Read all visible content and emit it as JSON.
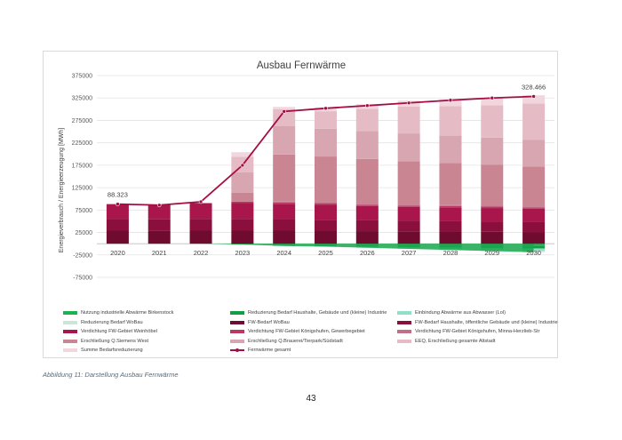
{
  "colors": {
    "fernwaerme_line": "#a50d45",
    "reduction_green": "#18a84d",
    "reduction_teal": "#8fe0c8"
  },
  "chart_data": {
    "type": "bar",
    "subtype": "stacked-bar-with-line",
    "title": "Ausbau Fernwärme",
    "xlabel": "",
    "ylabel": "Energieverbrauch / Energieerzeugung [MWh]",
    "ylim": [
      -75000,
      375000
    ],
    "yticks": [
      -75000,
      -25000,
      25000,
      75000,
      125000,
      175000,
      225000,
      275000,
      325000,
      375000
    ],
    "ytick_labels": [
      "-75000",
      "-25000",
      "25000",
      "75000",
      "125000",
      "175000",
      "225000",
      "275000",
      "325000",
      "375000"
    ],
    "grid": true,
    "legend_position": "bottom",
    "categories": [
      "2020",
      "2021",
      "2022",
      "2023",
      "2024",
      "2025",
      "2026",
      "2027",
      "2028",
      "2029",
      "2030"
    ],
    "series": [
      {
        "name": "Nutzung industrielle Abwärme Birkenstock",
        "color": "#1fb14f",
        "stack": "negative",
        "values": [
          0,
          0,
          0,
          0,
          -2000,
          -2500,
          -3000,
          -3500,
          -4000,
          -4500,
          -5000
        ]
      },
      {
        "name": "Reduzierung Bedarf Haushalte, Gebäude und (kleine) Industrie",
        "color": "#129e43",
        "stack": "negative",
        "values": [
          0,
          0,
          0,
          -2000,
          -2500,
          -3000,
          -3500,
          -4000,
          -4500,
          -5000,
          -5500
        ]
      },
      {
        "name": "Einbindung Abwärme aus Abwasser (Lol)",
        "color": "#8fe0c8",
        "stack": "negative",
        "values": [
          0,
          0,
          0,
          0,
          0,
          0,
          -1000,
          -2000,
          -3000,
          -4000,
          -5000
        ]
      },
      {
        "name": "Reduzierung Bedarf WoBau",
        "color": "#c9e6dc",
        "stack": "negative",
        "values": [
          0,
          0,
          0,
          0,
          -500,
          -1000,
          -1500,
          -2000,
          -2500,
          -3000,
          -3500
        ]
      },
      {
        "name": "FW-Bedarf WoBau",
        "color": "#6e0b2e",
        "stack": "positive",
        "values": [
          30000,
          29500,
          30000,
          30000,
          30000,
          29000,
          28000,
          27500,
          27000,
          26500,
          26000
        ]
      },
      {
        "name": "FW-Bedarf Haushalte, öffentliche Gebäude und (kleine) Industrie",
        "color": "#8a0f3c",
        "stack": "positive",
        "values": [
          25000,
          25000,
          25500,
          25500,
          25000,
          24500,
          24000,
          23500,
          23000,
          22500,
          22000
        ]
      },
      {
        "name": "Verdichtung FW-Gebiet Weinhöbel",
        "color": "#a8164b",
        "stack": "positive",
        "values": [
          33323,
          32500,
          35000,
          35000,
          34000,
          33000,
          32000,
          31000,
          31000,
          30500,
          30000
        ]
      },
      {
        "name": "Verdichtung FW-Gebiet Königshufen, Gewerbegebiet",
        "color": "#b83a62",
        "stack": "positive",
        "values": [
          0,
          0,
          0,
          3500,
          3000,
          3000,
          3000,
          3000,
          3000,
          3000,
          3000
        ]
      },
      {
        "name": "Verdichtung FW-Gebiet Königshufen, Minna-Herzlieb-Str",
        "color": "#c06f86",
        "stack": "positive",
        "values": [
          0,
          0,
          0,
          0,
          2000,
          2000,
          2000,
          2000,
          2000,
          2000,
          2000
        ]
      },
      {
        "name": "Erschließung Q.Siemens West",
        "color": "#c98592",
        "stack": "positive",
        "values": [
          0,
          0,
          0,
          20000,
          105000,
          103000,
          100000,
          97000,
          94000,
          92000,
          89000
        ]
      },
      {
        "name": "Erschließung Q.Brauerei/Tierpark/Südstadt",
        "color": "#d8a6b1",
        "stack": "positive",
        "values": [
          0,
          0,
          0,
          45000,
          63000,
          62000,
          62000,
          62000,
          61000,
          60000,
          60000
        ]
      },
      {
        "name": "EEQ, Erschließung gesamte Altstadt",
        "color": "#e5bcc6",
        "stack": "positive",
        "values": [
          0,
          0,
          0,
          35000,
          38000,
          39000,
          50000,
          60000,
          66000,
          72000,
          81000
        ]
      },
      {
        "name": "Summe Bedarfsreduzierung",
        "color": "#f2d6de",
        "stack": "positive",
        "values": [
          0,
          0,
          0,
          10000,
          5000,
          8000,
          10000,
          13000,
          15000,
          17000,
          18000
        ]
      }
    ],
    "line_series": {
      "name": "Fernwärme gesamt",
      "color": "#a50d45",
      "values": [
        88323,
        86000,
        93500,
        175000,
        295000,
        302000,
        308000,
        314000,
        320000,
        325000,
        328466
      ]
    },
    "data_labels": [
      {
        "category": "2020",
        "text": "88.323"
      },
      {
        "category": "2030",
        "text": "328.466"
      }
    ]
  },
  "caption": "Abbildung 11: Darstellung Ausbau Fernwärme",
  "page_number": "43"
}
